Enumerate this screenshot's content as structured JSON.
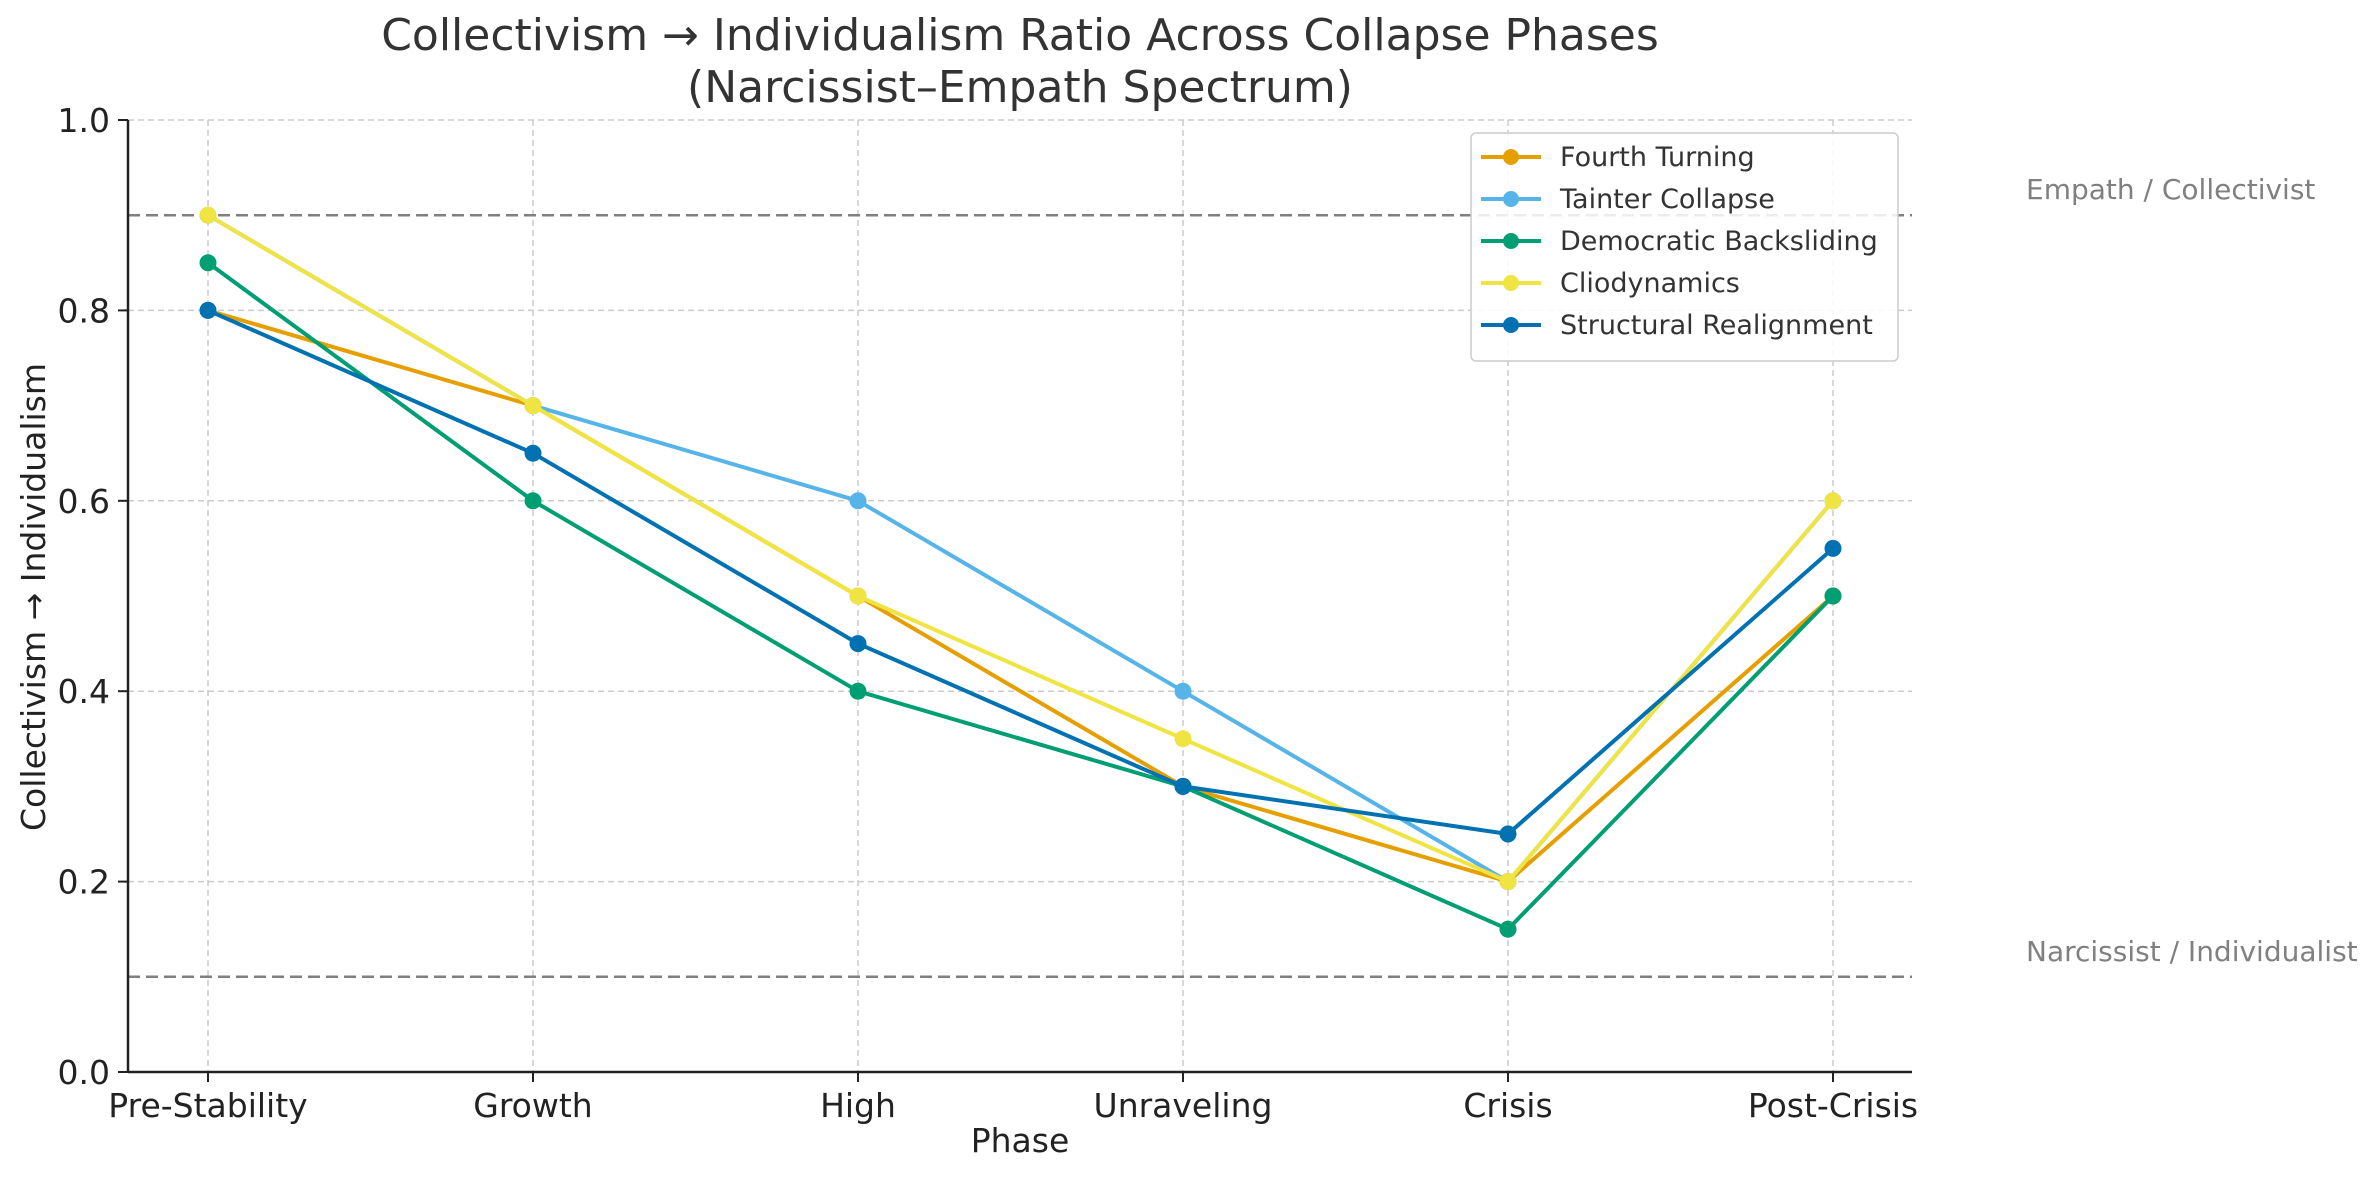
{
  "chart_data": {
    "type": "line",
    "title": "Collectivism → Individualism Ratio Across Collapse Phases",
    "subtitle": "(Narcissist–Empath Spectrum)",
    "xlabel": "Phase",
    "ylabel": "Collectivism → Individualism",
    "categories": [
      "Pre-Stability",
      "Growth",
      "High",
      "Unraveling",
      "Crisis",
      "Post-Crisis"
    ],
    "ylim": [
      0,
      1.0
    ],
    "yticks": [
      "0.0",
      "0.2",
      "0.4",
      "0.6",
      "0.8",
      "1.0"
    ],
    "grid": true,
    "legend_position": "top-right",
    "series": [
      {
        "name": "Fourth Turning",
        "color": "#E69F00",
        "values": [
          0.8,
          0.7,
          0.5,
          0.3,
          0.2,
          0.5
        ]
      },
      {
        "name": "Tainter Collapse",
        "color": "#56B4E9",
        "values": [
          0.9,
          0.7,
          0.6,
          0.4,
          0.2,
          0.6
        ]
      },
      {
        "name": "Democratic Backsliding",
        "color": "#009E73",
        "values": [
          0.85,
          0.6,
          0.4,
          0.3,
          0.15,
          0.5
        ]
      },
      {
        "name": "Cliodynamics",
        "color": "#F0E442",
        "values": [
          0.9,
          0.7,
          0.5,
          0.35,
          0.2,
          0.6
        ]
      },
      {
        "name": "Structural Realignment",
        "color": "#0072B2",
        "values": [
          0.8,
          0.65,
          0.45,
          0.3,
          0.25,
          0.55
        ]
      }
    ],
    "reference_lines": [
      {
        "y": 0.9,
        "label": "Empath / Collectivist",
        "color": "#808080"
      },
      {
        "y": 0.1,
        "label": "Narcissist / Individualist",
        "color": "#808080"
      }
    ]
  }
}
